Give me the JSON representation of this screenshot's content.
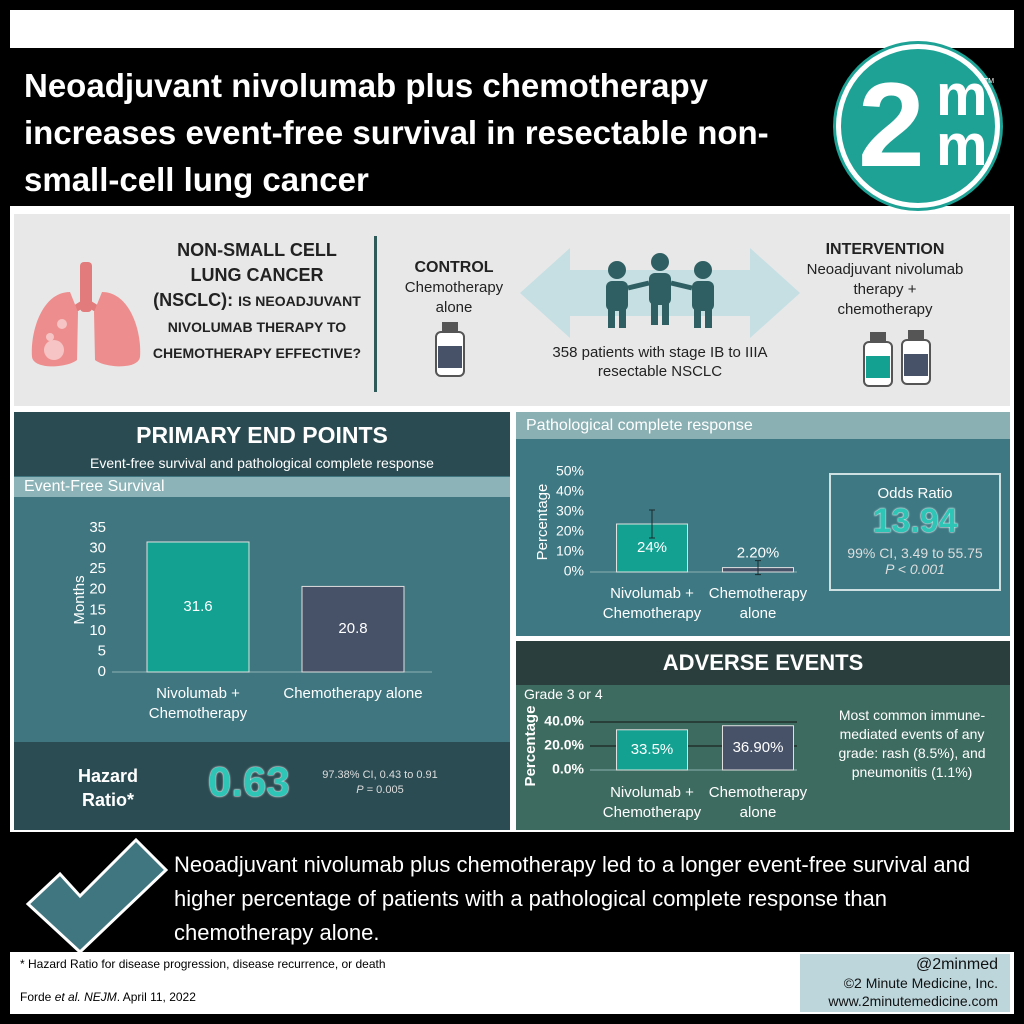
{
  "header": {
    "title": "Neoadjuvant nivolumab plus chemotherapy increases event-free survival in resectable non-small-cell lung cancer",
    "logo": {
      "number": "2",
      "top": "m",
      "bottom": "m",
      "mark": "TM"
    }
  },
  "question": {
    "heading": "NON-SMALL CELL LUNG CANCER (NSCLC):",
    "text": "IS NEOADJUVANT NIVOLUMAB THERAPY TO CHEMOTHERAPY EFFECTIVE?"
  },
  "control": {
    "label": "CONTROL",
    "text": "Chemotherapy alone"
  },
  "population": "358 patients with stage IB to IIIA resectable NSCLC",
  "intervention": {
    "label": "INTERVENTION",
    "text": "Neoadjuvant nivolumab therapy + chemotherapy"
  },
  "primary": {
    "title": "PRIMARY END POINTS",
    "subtitle": "Event-free survival and pathological complete response"
  },
  "hazard_ratio": {
    "label": "Hazard Ratio*",
    "value": "0.63",
    "ci": "97.38% CI, 0.43 to 0.91",
    "p_symbol": "P",
    "p_value": "= 0.005"
  },
  "odds_ratio": {
    "label": "Odds Ratio",
    "value": "13.94",
    "ci": "99% CI, 3.49 to 55.75",
    "p": "P < 0.001"
  },
  "adverse": {
    "title": "ADVERSE EVENTS",
    "note": "Most common immune-mediated events of any grade: rash (8.5%), and pneumonitis (1.1%)"
  },
  "conclusion": "Neoadjuvant nivolumab plus chemotherapy led to a longer event-free survival and higher percentage of patients with a pathological complete response than chemotherapy alone.",
  "footnote": "* Hazard Ratio for disease progression, disease recurrence, or death",
  "citation": [
    "Forde",
    "et al.",
    "NEJM",
    ". April 11, 2022"
  ],
  "credits": [
    "@2minmed",
    "©2 Minute Medicine, Inc.",
    "www.2minutemedicine.com"
  ],
  "chart_data": [
    {
      "type": "bar",
      "title": "Event-Free Survival",
      "ylabel": "Months",
      "categories": [
        "Nivolumab + Chemotherapy",
        "Chemotherapy alone"
      ],
      "values": [
        31.6,
        20.8
      ],
      "colors": [
        "#13a291",
        "#475268"
      ],
      "ylim": [
        0,
        35
      ],
      "yticks": [
        0,
        5,
        10,
        15,
        20,
        25,
        30,
        35
      ],
      "grid": false
    },
    {
      "type": "bar",
      "title": "Pathological complete response",
      "ylabel": "Percentage",
      "categories": [
        "Nivolumab + Chemotherapy",
        "Chemotherapy alone"
      ],
      "values": [
        24,
        2.2
      ],
      "value_labels": [
        "24%",
        "2.20%"
      ],
      "errors": [
        7,
        3.5
      ],
      "colors": [
        "#13a291",
        "#475268"
      ],
      "ylim": [
        0,
        50
      ],
      "yticks": [
        {
          "value": 0,
          "label": "0%"
        },
        {
          "value": 10,
          "label": "10%"
        },
        {
          "value": 20,
          "label": "20%"
        },
        {
          "value": 30,
          "label": "30%"
        },
        {
          "value": 40,
          "label": "40%"
        },
        {
          "value": 50,
          "label": "50%"
        }
      ],
      "grid": false
    },
    {
      "type": "bar",
      "title": "Grade 3 or 4",
      "ylabel": "Percentage",
      "categories": [
        "Nivolumab + Chemotherapy",
        "Chemotherapy alone"
      ],
      "values": [
        33.5,
        36.9
      ],
      "value_labels": [
        "33.5%",
        "36.90%"
      ],
      "colors": [
        "#13a291",
        "#475268"
      ],
      "ylim": [
        0,
        40
      ],
      "yticks": [
        {
          "value": 0,
          "label": "0.0%"
        },
        {
          "value": 20,
          "label": "20.0%"
        },
        {
          "value": 40,
          "label": "40.0%"
        }
      ],
      "grid": true
    }
  ]
}
